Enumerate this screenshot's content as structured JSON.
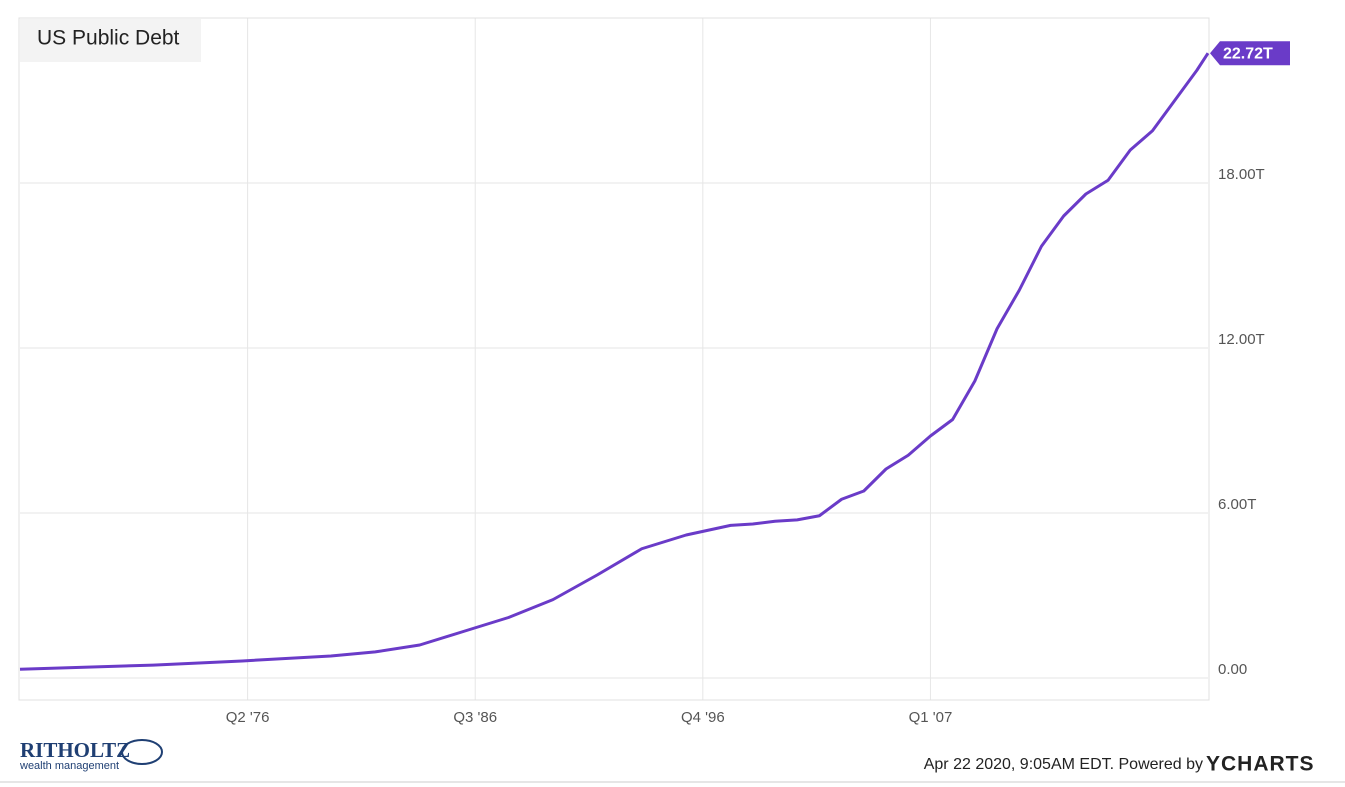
{
  "chart_data": {
    "type": "line",
    "title": "US Public Debt",
    "series": [
      {
        "name": "US Public Debt",
        "color": "#6a3bc8",
        "x": [
          1966,
          1972,
          1976,
          1980,
          1982,
          1984,
          1986,
          1988,
          1990,
          1992,
          1994,
          1996,
          1998,
          1999,
          2000,
          2001,
          2002,
          2003,
          2004,
          2005,
          2006,
          2007,
          2008,
          2009,
          2010,
          2011,
          2012,
          2013,
          2014,
          2015,
          2016,
          2017,
          2018,
          2019,
          2019.5
        ],
        "values": [
          0.32,
          0.47,
          0.62,
          0.8,
          0.95,
          1.2,
          1.7,
          2.2,
          2.85,
          3.75,
          4.7,
          5.2,
          5.55,
          5.6,
          5.7,
          5.75,
          5.9,
          6.5,
          6.8,
          7.6,
          8.1,
          8.8,
          9.4,
          10.8,
          12.7,
          14.1,
          15.7,
          16.8,
          17.6,
          18.1,
          19.2,
          19.9,
          21.0,
          22.1,
          22.72
        ],
        "last_value_label": "22.72T"
      }
    ],
    "xlim": [
      1966,
      2019.5
    ],
    "xticks": [
      {
        "value": 1976.25,
        "label": "Q2 '76"
      },
      {
        "value": 1986.5,
        "label": "Q3 '86"
      },
      {
        "value": 1996.75,
        "label": "Q4 '96"
      },
      {
        "value": 2007.0,
        "label": "Q1 '07"
      }
    ],
    "ylim": [
      -0.8,
      24
    ],
    "yticks": [
      {
        "value": 0,
        "label": "0.00"
      },
      {
        "value": 6,
        "label": "6.00T"
      },
      {
        "value": 12,
        "label": "12.00T"
      },
      {
        "value": 18,
        "label": "18.00T"
      }
    ],
    "grid": true
  },
  "footer": {
    "timestamp": "Apr 22 2020, 9:05AM EDT. Powered by",
    "brand": "YCHARTS",
    "logo": "RITHOLTZ",
    "logo_sub": "wealth management"
  }
}
